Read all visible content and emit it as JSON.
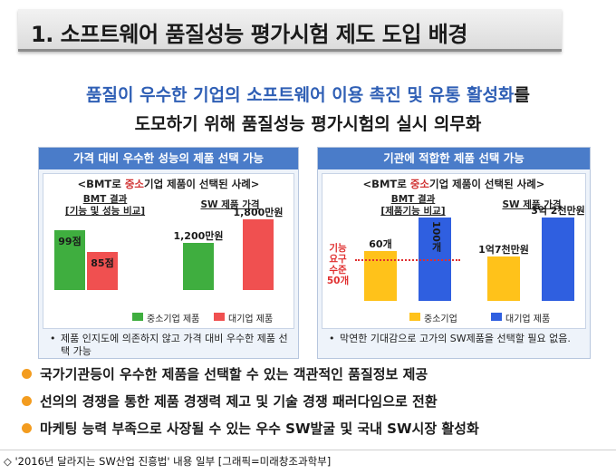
{
  "title": "1. 소프트웨어 품질성능 평가시험 제도 도입 배경",
  "headline": {
    "highlight": "품질이 우수한 기업의 소프트웨어 이용 촉진 및 유통 활성화",
    "suffix": "를",
    "line2": "도모하기 위해 품질성능 평가시험의 실시 의무화"
  },
  "left_panel": {
    "header": "가격 대비 우수한 성능의 제품 선택 가능",
    "subtitle_pre": "<BMT로 ",
    "subtitle_red": "중소",
    "subtitle_post": "기업 제품이 선택된 사례>",
    "chart1_label_line1": "BMT 결과",
    "chart1_label_line2": "[기능 및 성능 비교]",
    "chart2_label": "SW 제품 가격",
    "legend_green": "중소기업 제품",
    "legend_red": "대기업 제품",
    "note": "제품 인지도에 의존하지 않고 가격 대비 우수한 제품 선택 가능"
  },
  "right_panel": {
    "header": "기관에 적합한 제품 선택 가능",
    "subtitle_pre": "<BMT로 ",
    "subtitle_red": "중소",
    "subtitle_post": "기업 제품이 선택된 사례>",
    "chart1_label_line1": "BMT 결과",
    "chart1_label_line2": "[제품기능 비교]",
    "chart2_label": "SW 제품 가격",
    "requirement_line1": "기능",
    "requirement_line2": "요구",
    "requirement_line3": "수준",
    "requirement_line4": "50개",
    "legend_yellow": "중소기업",
    "legend_blue": "대기업 제품",
    "note": "막연한 기대감으로 고가의 SW제품을 선택할 필요 없음."
  },
  "chart_data": [
    {
      "type": "bar",
      "title": "BMT 결과 [기능 및 성능 비교]",
      "categories": [
        "중소기업 제품",
        "대기업 제품"
      ],
      "values": [
        99,
        85
      ],
      "value_labels": [
        "99점",
        "85점"
      ],
      "colors": [
        "#3fae3f",
        "#f05050"
      ]
    },
    {
      "type": "bar",
      "title": "SW 제품 가격",
      "categories": [
        "중소기업 제품",
        "대기업 제품"
      ],
      "values": [
        1200,
        1800
      ],
      "value_labels": [
        "1,200만원",
        "1,800만원"
      ],
      "colors": [
        "#3fae3f",
        "#f05050"
      ]
    },
    {
      "type": "bar",
      "title": "BMT 결과 [제품기능 비교]",
      "categories": [
        "중소기업",
        "대기업 제품"
      ],
      "values": [
        60,
        100
      ],
      "value_labels": [
        "60개",
        "100개"
      ],
      "reference_line": 50,
      "colors": [
        "#ffc21a",
        "#2f5fe0"
      ]
    },
    {
      "type": "bar",
      "title": "SW 제품 가격",
      "categories": [
        "중소기업",
        "대기업 제품"
      ],
      "values": [
        17000,
        32000
      ],
      "value_labels": [
        "1억7천만원",
        "3억 2천만원"
      ],
      "colors": [
        "#ffc21a",
        "#2f5fe0"
      ]
    }
  ],
  "bullets": [
    "국가기관등이 우수한 제품을 선택할 수 있는 객관적인 품질정보 제공",
    "선의의 경쟁을 통한 제품 경쟁력 제고 및 기술 경쟁 패러다임으로 전환",
    "마케팅 능력 부족으로 사장될 수 있는 우수 SW발굴 및 국내 SW시장 활성화"
  ],
  "caption": "◇ '2016년 달라지는 SW산업 진흥법' 내용 일부 [그래픽=미래창조과학부]",
  "note_bullet": "•"
}
